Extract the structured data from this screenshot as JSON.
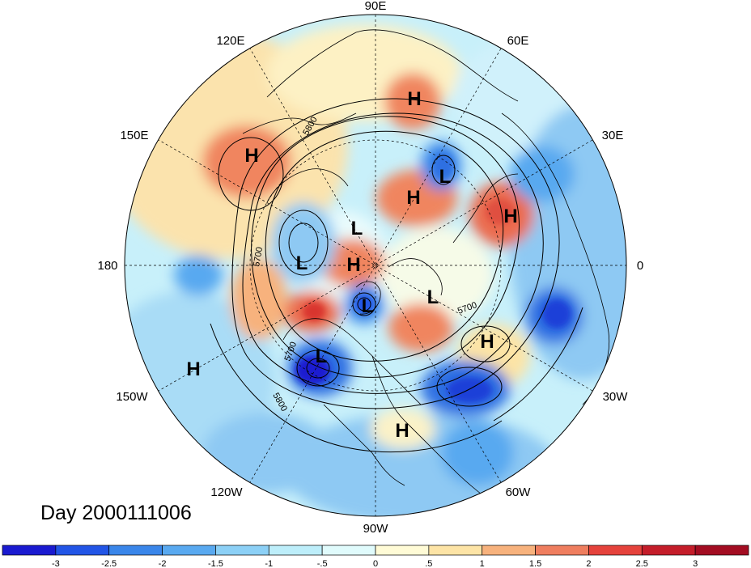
{
  "title": "Day 2000111006",
  "longitude_labels": [
    "90E",
    "60E",
    "30E",
    "0",
    "30W",
    "60W",
    "90W",
    "120W",
    "150W",
    "180",
    "150E",
    "120E"
  ],
  "contour_labels": [
    "5800",
    "5700",
    "5700",
    "5700",
    "5800"
  ],
  "centers": [
    {
      "type": "H",
      "label": "H"
    },
    {
      "type": "H",
      "label": "H"
    },
    {
      "type": "L",
      "label": "L"
    },
    {
      "type": "H",
      "label": "H"
    },
    {
      "type": "H",
      "label": "H"
    },
    {
      "type": "L",
      "label": "L"
    },
    {
      "type": "L",
      "label": "L"
    },
    {
      "type": "H",
      "label": "H"
    },
    {
      "type": "L",
      "label": "L"
    },
    {
      "type": "L",
      "label": "L"
    },
    {
      "type": "H",
      "label": "H"
    },
    {
      "type": "L",
      "label": "L"
    },
    {
      "type": "H",
      "label": "H"
    },
    {
      "type": "H",
      "label": "H"
    }
  ],
  "colorbar": {
    "ticks": [
      "-3",
      "-2.5",
      "-2",
      "-1.5",
      "-1",
      "-.5",
      "0",
      ".5",
      "1",
      "1.5",
      "2",
      "2.5",
      "3"
    ],
    "colors": [
      "#1a1ad0",
      "#2255e6",
      "#3a86ea",
      "#59a9f0",
      "#8cd0f6",
      "#bdeefa",
      "#e0fbfc",
      "#fffbd6",
      "#fde4a6",
      "#f7b27d",
      "#ef7e5f",
      "#e5423c",
      "#c41d2a",
      "#a30d22"
    ]
  }
}
